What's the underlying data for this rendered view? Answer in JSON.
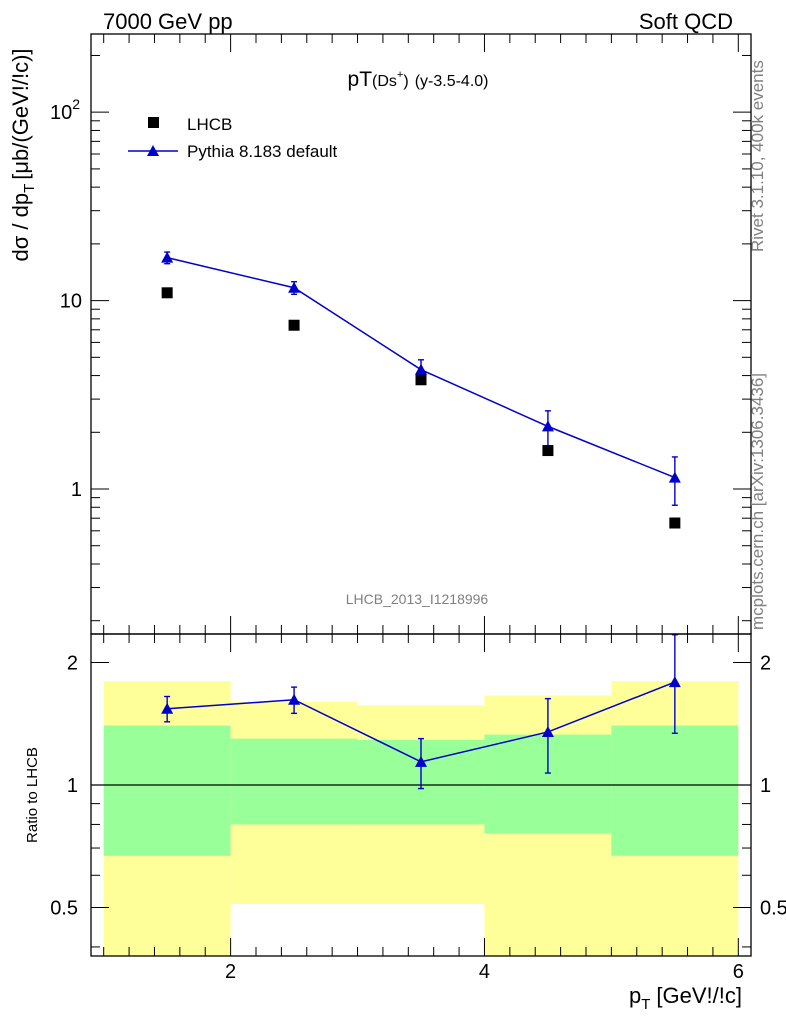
{
  "header": {
    "energy_label": "7000 GeV pp",
    "process_label": "Soft QCD"
  },
  "side_labels": {
    "rivet": "Rivet 3.1.10,  400k events",
    "source": "mcplots.cern.ch [arXiv:1306.3436]"
  },
  "colors": {
    "data_marker": "#000000",
    "mc_line": "#0000cc",
    "band_inner": "#99ff99",
    "band_outer": "#ffff99",
    "watermark": "#808080"
  },
  "chart_data": [
    {
      "type": "line",
      "title": "pT(Ds+) (y-3.5-4.0)",
      "title_main": "pT",
      "title_paren": "(Ds",
      "title_sup": "+",
      "title_close": ")",
      "title_suffix": "(y-3.5-4.0)",
      "ylabel": "dσ / dp_T [μb/(GeV!/!c)]",
      "ylabel_main": "dσ / dp",
      "ylabel_sub": "T",
      "ylabel_unit": "[μb/(GeV!/!c)]",
      "yscale": "log",
      "xlim": [
        0.9,
        6.1
      ],
      "ylim": [
        0.17,
        260
      ],
      "ytick_labels": [
        {
          "value": 1,
          "label": "1"
        },
        {
          "value": 10,
          "label": "10"
        },
        {
          "value": 100,
          "label": "10",
          "sup": "2"
        }
      ],
      "watermark": "LHCB_2013_I1218996",
      "legend_position": "top-left",
      "series": [
        {
          "name": "LHCB",
          "marker": "square",
          "x": [
            1.5,
            2.5,
            3.5,
            4.5,
            5.5
          ],
          "y": [
            11.0,
            7.4,
            3.8,
            1.6,
            0.66
          ]
        },
        {
          "name": "Pythia 8.183 default",
          "marker": "triangle",
          "x": [
            1.5,
            2.5,
            3.5,
            4.5,
            5.5
          ],
          "y": [
            16.9,
            11.7,
            4.3,
            2.15,
            1.15
          ],
          "yerr_low": [
            1.2,
            0.9,
            0.55,
            0.5,
            0.33
          ],
          "yerr_high": [
            1.2,
            0.9,
            0.55,
            0.45,
            0.33
          ]
        }
      ]
    },
    {
      "type": "line",
      "title": "",
      "ylabel": "Ratio to LHCB",
      "xlabel": "p_T [GeV!/!c]",
      "xlabel_main": "p",
      "xlabel_sub": "T",
      "xlabel_unit": "[GeV!/!c]",
      "yscale": "log",
      "xlim": [
        0.9,
        6.1
      ],
      "ylim": [
        0.38,
        2.35
      ],
      "xtick_labels": [
        2,
        4,
        6
      ],
      "ytick_labels": [
        {
          "value": 0.5,
          "label": "0.5"
        },
        {
          "value": 1,
          "label": "1"
        },
        {
          "value": 2,
          "label": "2"
        }
      ],
      "bins": [
        [
          1,
          2
        ],
        [
          2,
          3
        ],
        [
          3,
          4
        ],
        [
          4,
          5
        ],
        [
          5,
          6
        ]
      ],
      "band_inner_low": [
        0.67,
        0.8,
        0.8,
        0.76,
        0.67
      ],
      "band_inner_high": [
        1.4,
        1.3,
        1.29,
        1.33,
        1.4
      ],
      "band_outer_low": [
        0.36,
        0.51,
        0.51,
        0.37,
        0.36
      ],
      "band_outer_high": [
        1.8,
        1.6,
        1.57,
        1.66,
        1.8
      ],
      "reference_line": 1,
      "series": [
        {
          "name": "Pythia 8.183 default",
          "marker": "triangle",
          "x": [
            1.5,
            2.5,
            3.5,
            4.5,
            5.5
          ],
          "y": [
            1.54,
            1.62,
            1.14,
            1.35,
            1.79
          ],
          "yerr_low": [
            0.11,
            0.12,
            0.16,
            0.28,
            0.45
          ],
          "yerr_high": [
            0.11,
            0.12,
            0.16,
            0.28,
            0.55
          ]
        }
      ]
    }
  ]
}
